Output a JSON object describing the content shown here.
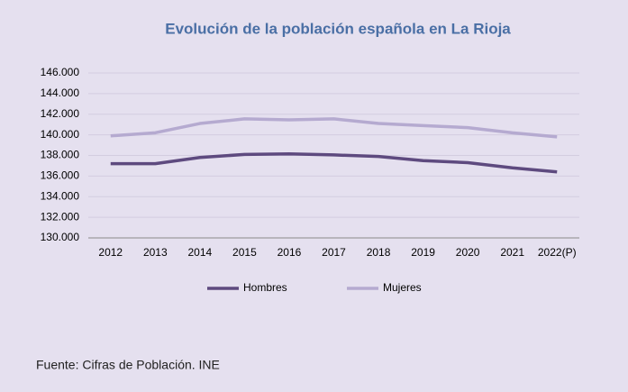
{
  "chart_data": {
    "type": "line",
    "title": "Evolución de la población española en La Rioja",
    "categories": [
      "2012",
      "2013",
      "2014",
      "2015",
      "2016",
      "2017",
      "2018",
      "2019",
      "2020",
      "2021",
      "2022(P)"
    ],
    "series": [
      {
        "name": "Hombres",
        "color": "#5e4a7f",
        "values": [
          137200,
          137200,
          137800,
          138100,
          138150,
          138050,
          137900,
          137500,
          137300,
          136800,
          136400
        ]
      },
      {
        "name": "Mujeres",
        "color": "#b5aad0",
        "values": [
          139900,
          140200,
          141100,
          141550,
          141450,
          141550,
          141100,
          140900,
          140700,
          140200,
          139800
        ]
      }
    ],
    "ylim": [
      130000,
      146000
    ],
    "yticks": [
      {
        "value": 130000,
        "label": "130.000"
      },
      {
        "value": 132000,
        "label": "132.000"
      },
      {
        "value": 134000,
        "label": "134.000"
      },
      {
        "value": 136000,
        "label": "136.000"
      },
      {
        "value": 138000,
        "label": "138.000"
      },
      {
        "value": 140000,
        "label": "140.000"
      },
      {
        "value": 142000,
        "label": "142.000"
      },
      {
        "value": 144000,
        "label": "144.000"
      },
      {
        "value": 146000,
        "label": "146.000"
      }
    ],
    "grid": true,
    "legend": "bottom",
    "source": "Fuente: Cifras de Población. INE"
  }
}
